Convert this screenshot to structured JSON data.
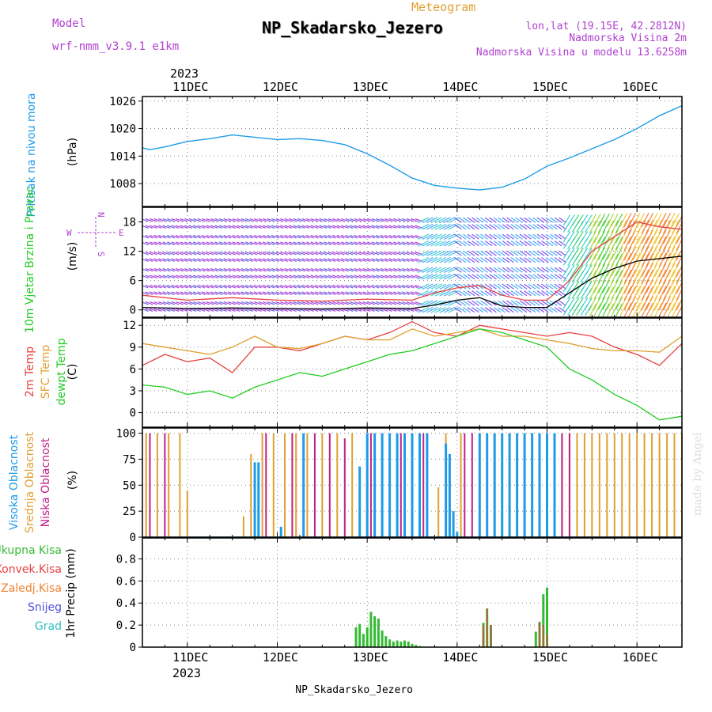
{
  "header": {
    "model_label": "Model",
    "model_name": "wrf-nmm_v3.9.1 e1km",
    "chart_kind": "Meteogram",
    "title": "NP_Skadarsko_Jezero",
    "location": "lon,lat (19.15E, 42.2812N)",
    "altitude": "Nadmorska Visina 2m",
    "model_altitude": "Nadmorska Visina u modelu 13.6258m",
    "credit": "made by Angel",
    "footer": "NP_Skadarsko_Jezero"
  },
  "colors": {
    "pressure": "#1e9be8",
    "temp2m": "#e84040",
    "sfc_temp": "#e0a030",
    "dewpt": "#22cc22",
    "high_cloud": "#1e9be8",
    "mid_cloud": "#e0a030",
    "low_cloud": "#c0208a",
    "total_rain": "#33bb33",
    "conv_rain": "#e84040",
    "freezing_rain": "#f08030",
    "snow": "#5050e0",
    "hail": "#30c0c0",
    "wind_axis": "#b040d0"
  },
  "chart_data": [
    {
      "id": "pressure",
      "type": "line",
      "title": "Pritisak na nivou mora",
      "ylabel": "(hPa)",
      "ylim": [
        1003,
        1027
      ],
      "yticks": [
        1008,
        1014,
        1020,
        1026
      ],
      "grid": true,
      "x": [
        "2023-12-10T12",
        "2023-12-10T14",
        "2023-12-10T18",
        "2023-12-11T00",
        "2023-12-11T06",
        "2023-12-11T12",
        "2023-12-12T00",
        "2023-12-12T06",
        "2023-12-12T12",
        "2023-12-12T18",
        "2023-12-13T00",
        "2023-12-13T06",
        "2023-12-13T12",
        "2023-12-13T18",
        "2023-12-14T00",
        "2023-12-14T06",
        "2023-12-14T12",
        "2023-12-14T18",
        "2023-12-15T00",
        "2023-12-15T06",
        "2023-12-15T12",
        "2023-12-15T18",
        "2023-12-16T00",
        "2023-12-16T06",
        "2023-12-16T12"
      ],
      "y": [
        1015.8,
        1015.4,
        1016.0,
        1017.2,
        1017.8,
        1018.6,
        1017.6,
        1017.8,
        1017.4,
        1016.5,
        1014.5,
        1012.0,
        1009.2,
        1007.6,
        1007.0,
        1006.6,
        1007.2,
        1009.0,
        1011.8,
        1013.6,
        1015.6,
        1017.6,
        1020.0,
        1022.8,
        1025.0
      ]
    },
    {
      "id": "wind",
      "type": "line",
      "title": "10m Vjetar Brzina i Pravac",
      "ylabel": "(m/s)",
      "ylim": [
        -1.5,
        21
      ],
      "yticks": [
        0,
        6,
        12,
        18
      ],
      "grid": true,
      "compass": {
        "n": "N",
        "s": "S",
        "e": "E",
        "w": "W"
      },
      "x": [
        "2023-12-10T12",
        "2023-12-11T00",
        "2023-12-11T12",
        "2023-12-12T00",
        "2023-12-12T12",
        "2023-12-13T00",
        "2023-12-13T12",
        "2023-12-13T18",
        "2023-12-14T00",
        "2023-12-14T06",
        "2023-12-14T12",
        "2023-12-14T18",
        "2023-12-15T00",
        "2023-12-15T06",
        "2023-12-15T12",
        "2023-12-15T18",
        "2023-12-16T00",
        "2023-12-16T06",
        "2023-12-16T12"
      ],
      "series": [
        {
          "color": "#e84040",
          "values": [
            3.0,
            2.0,
            2.5,
            2.0,
            1.8,
            2.2,
            2.0,
            3.5,
            4.5,
            5.0,
            3.0,
            2.0,
            2.0,
            6.0,
            12.0,
            15.0,
            18.0,
            17.0,
            16.5
          ]
        },
        {
          "color": "#000000",
          "values": [
            0.5,
            0.3,
            0.4,
            0.3,
            0.2,
            0.4,
            0.3,
            1.0,
            2.0,
            2.5,
            0.8,
            0.5,
            0.5,
            3.5,
            6.5,
            8.5,
            10.0,
            10.5,
            11.0
          ]
        }
      ]
    },
    {
      "id": "temperature",
      "type": "line",
      "ylabel": "(C)",
      "ylim": [
        -2,
        13
      ],
      "yticks": [
        0,
        3,
        6,
        9,
        12
      ],
      "grid": true,
      "x": [
        "2023-12-10T12",
        "2023-12-10T18",
        "2023-12-11T00",
        "2023-12-11T06",
        "2023-12-11T12",
        "2023-12-11T18",
        "2023-12-12T00",
        "2023-12-12T06",
        "2023-12-12T12",
        "2023-12-12T18",
        "2023-12-13T00",
        "2023-12-13T06",
        "2023-12-13T12",
        "2023-12-13T18",
        "2023-12-14T00",
        "2023-12-14T06",
        "2023-12-14T12",
        "2023-12-14T18",
        "2023-12-15T00",
        "2023-12-15T06",
        "2023-12-15T12",
        "2023-12-15T18",
        "2023-12-16T00",
        "2023-12-16T06",
        "2023-12-16T12"
      ],
      "series": [
        {
          "name": "2m Temp",
          "color": "#e84040",
          "values": [
            6.5,
            8.0,
            7.0,
            7.5,
            5.5,
            9.0,
            9.0,
            8.5,
            9.5,
            10.5,
            10.0,
            11.0,
            12.5,
            11.0,
            10.5,
            12.0,
            11.5,
            11.0,
            10.5,
            11.0,
            10.5,
            9.0,
            8.0,
            6.5,
            9.5
          ]
        },
        {
          "name": "SFC Temp",
          "color": "#e0a030",
          "values": [
            9.5,
            9.0,
            8.5,
            8.0,
            9.0,
            10.5,
            9.0,
            8.8,
            9.5,
            10.5,
            10.0,
            10.0,
            11.5,
            10.5,
            11.0,
            11.5,
            10.5,
            10.5,
            10.0,
            9.5,
            8.8,
            8.5,
            8.5,
            8.3,
            10.5
          ]
        },
        {
          "name": "dewpt Temp",
          "color": "#22cc22",
          "values": [
            3.8,
            3.5,
            2.5,
            3.0,
            2.0,
            3.5,
            4.5,
            5.5,
            5.0,
            6.0,
            7.0,
            8.0,
            8.5,
            9.5,
            10.5,
            11.5,
            11.0,
            10.0,
            9.0,
            6.0,
            4.5,
            2.5,
            1.0,
            -1.0,
            -0.5
          ]
        }
      ]
    },
    {
      "id": "clouds",
      "type": "bar",
      "ylabel": "(%)",
      "ylim": [
        0,
        105
      ],
      "yticks": [
        0,
        25,
        50,
        75,
        100
      ],
      "grid": true,
      "series": [
        {
          "name": "Visoka Oblacnost",
          "color": "#1e9be8",
          "x": [
            "2023-12-11T18",
            "2023-12-11T19",
            "2023-12-12T01",
            "2023-12-12T07",
            "2023-12-12T22",
            "2023-12-13T00",
            "2023-12-13T02",
            "2023-12-13T04",
            "2023-12-13T06",
            "2023-12-13T08",
            "2023-12-13T10",
            "2023-12-13T12",
            "2023-12-13T14",
            "2023-12-13T16",
            "2023-12-13T21",
            "2023-12-13T22",
            "2023-12-13T23",
            "2023-12-14T00",
            "2023-12-14T06",
            "2023-12-14T08",
            "2023-12-14T10",
            "2023-12-14T12",
            "2023-12-14T14",
            "2023-12-14T16",
            "2023-12-14T18",
            "2023-12-14T20",
            "2023-12-14T22",
            "2023-12-15T00",
            "2023-12-15T02"
          ],
          "values": [
            72,
            72,
            10,
            100,
            68,
            100,
            100,
            100,
            100,
            100,
            100,
            100,
            100,
            100,
            90,
            80,
            25,
            5,
            100,
            100,
            100,
            100,
            100,
            100,
            100,
            100,
            100,
            100,
            100
          ]
        },
        {
          "name": "Srednja Oblacnost",
          "color": "#e0a030",
          "x": [
            "2023-12-10T13",
            "2023-12-10T16",
            "2023-12-10T19",
            "2023-12-10T22",
            "2023-12-11T00",
            "2023-12-11T15",
            "2023-12-11T17",
            "2023-12-11T20",
            "2023-12-11T23",
            "2023-12-12T02",
            "2023-12-12T05",
            "2023-12-12T08",
            "2023-12-12T12",
            "2023-12-12T16",
            "2023-12-12T20",
            "2023-12-13T19",
            "2023-12-13T21",
            "2023-12-14T01",
            "2023-12-15T04",
            "2023-12-15T06",
            "2023-12-15T08",
            "2023-12-15T10",
            "2023-12-15T12",
            "2023-12-15T14",
            "2023-12-15T16",
            "2023-12-15T18",
            "2023-12-15T20",
            "2023-12-15T22",
            "2023-12-16T00",
            "2023-12-16T02",
            "2023-12-16T04",
            "2023-12-16T06",
            "2023-12-16T08",
            "2023-12-16T10",
            "2023-12-16T12"
          ],
          "values": [
            100,
            100,
            100,
            100,
            45,
            20,
            80,
            100,
            100,
            100,
            100,
            100,
            100,
            100,
            100,
            48,
            100,
            100,
            100,
            100,
            100,
            100,
            100,
            100,
            100,
            100,
            100,
            100,
            100,
            100,
            100,
            100,
            100,
            100,
            100
          ]
        },
        {
          "name": "Niska Oblacnost",
          "color": "#c0208a",
          "x": [
            "2023-12-10T14",
            "2023-12-10T18",
            "2023-12-11T21",
            "2023-12-12T04",
            "2023-12-12T10",
            "2023-12-12T14",
            "2023-12-12T18",
            "2023-12-13T01",
            "2023-12-13T09",
            "2023-12-13T15",
            "2023-12-14T02",
            "2023-12-14T04",
            "2023-12-14T08",
            "2023-12-14T14",
            "2023-12-14T20",
            "2023-12-15T00",
            "2023-12-15T04",
            "2023-12-15T06"
          ],
          "values": [
            100,
            100,
            100,
            100,
            100,
            100,
            95,
            100,
            100,
            100,
            100,
            100,
            100,
            100,
            100,
            100,
            100,
            100
          ]
        }
      ]
    },
    {
      "id": "precipitation",
      "type": "bar",
      "ylabel": "1hr Precip (mm)",
      "ylim": [
        0,
        0.99
      ],
      "yticks": [
        0,
        0.2,
        0.4,
        0.6,
        0.8
      ],
      "grid": true,
      "series": [
        {
          "name": "Ukupna Kisa",
          "color": "#33bb33",
          "x": [
            "2023-12-12T21",
            "2023-12-12T22",
            "2023-12-12T23",
            "2023-12-13T00",
            "2023-12-13T01",
            "2023-12-13T02",
            "2023-12-13T03",
            "2023-12-13T04",
            "2023-12-13T05",
            "2023-12-13T06",
            "2023-12-13T07",
            "2023-12-13T08",
            "2023-12-13T09",
            "2023-12-13T10",
            "2023-12-13T11",
            "2023-12-13T12",
            "2023-12-13T13",
            "2023-12-13T14",
            "2023-12-14T07",
            "2023-12-14T08",
            "2023-12-14T09",
            "2023-12-14T21",
            "2023-12-14T22",
            "2023-12-14T23",
            "2023-12-15T00"
          ],
          "values": [
            0.18,
            0.21,
            0.12,
            0.18,
            0.32,
            0.28,
            0.26,
            0.15,
            0.1,
            0.07,
            0.05,
            0.06,
            0.05,
            0.06,
            0.05,
            0.03,
            0.02,
            0.01,
            0.22,
            0.35,
            0.2,
            0.14,
            0.23,
            0.48,
            0.54
          ]
        },
        {
          "name": "Konvek.Kisa",
          "color": "#e84040",
          "x": [
            "2023-12-14T07",
            "2023-12-14T08",
            "2023-12-14T09",
            "2023-12-14T22",
            "2023-12-14T23",
            "2023-12-15T00"
          ],
          "values": [
            0.2,
            0.35,
            0.2,
            0.22,
            0.2,
            0.12
          ]
        },
        {
          "name": "Zaledj.Kisa",
          "color": "#f08030",
          "x": [],
          "values": []
        },
        {
          "name": "Snijeg",
          "color": "#5050e0",
          "x": [],
          "values": []
        },
        {
          "name": "Grad",
          "color": "#30c0c0",
          "x": [],
          "values": []
        }
      ]
    }
  ],
  "time_axis": {
    "start": "2023-12-10T12",
    "end": "2023-12-16T12",
    "year": "2023",
    "day_labels": [
      "11DEC",
      "12DEC",
      "13DEC",
      "14DEC",
      "15DEC",
      "16DEC"
    ]
  }
}
